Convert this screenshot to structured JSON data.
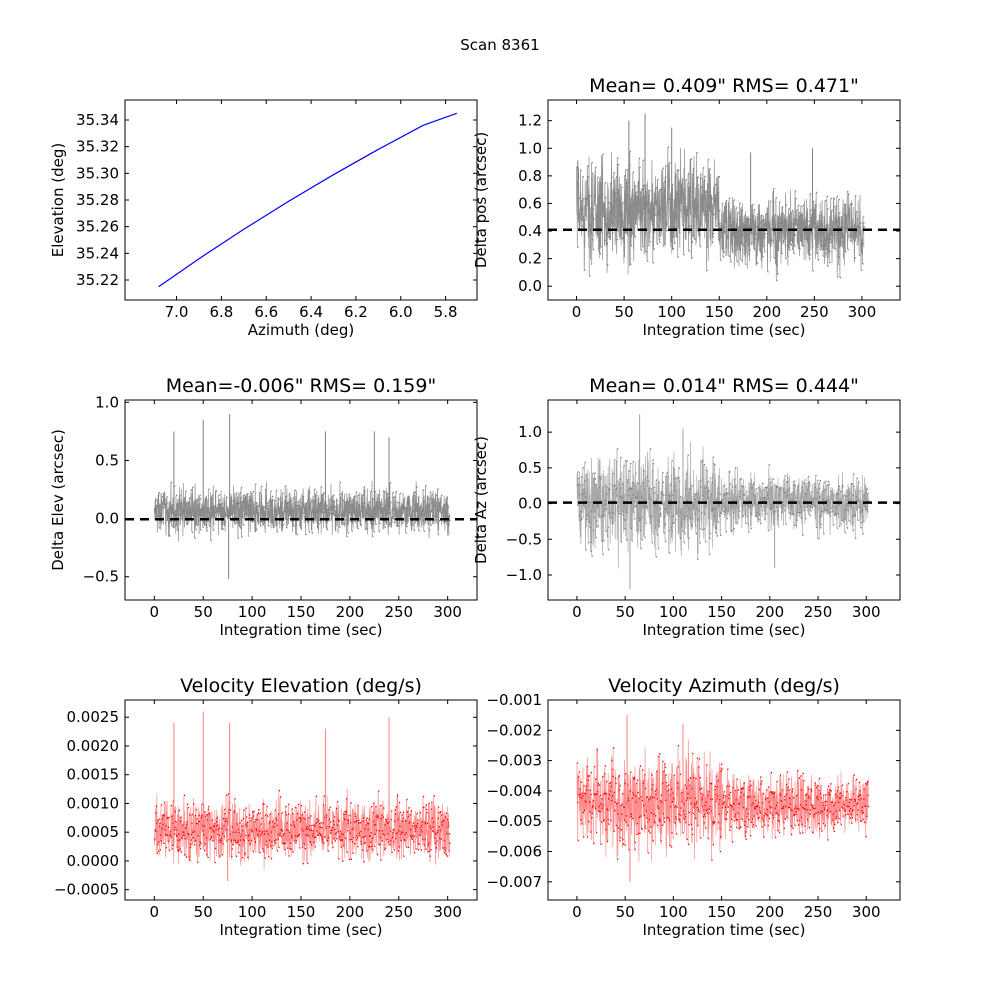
{
  "figure_title": "Scan 8361",
  "chart_data": [
    {
      "id": "elev-vs-az",
      "type": "line",
      "title": "",
      "xlabel": "Azimuth (deg)",
      "ylabel": "Elevation (deg)",
      "xlim": [
        7.23,
        5.66
      ],
      "ylim": [
        35.205,
        35.355
      ],
      "x_reversed": true,
      "xticks": [
        7.0,
        6.8,
        6.6,
        6.4,
        6.2,
        6.0,
        5.8
      ],
      "xtick_labels": [
        "7.0",
        "6.8",
        "6.6",
        "6.4",
        "6.2",
        "6.0",
        "5.8"
      ],
      "yticks": [
        35.22,
        35.24,
        35.26,
        35.28,
        35.3,
        35.32,
        35.34
      ],
      "ytick_labels": [
        "35.22",
        "35.24",
        "35.26",
        "35.28",
        "35.30",
        "35.32",
        "35.34"
      ],
      "series": [
        {
          "color": "#0000ff",
          "x": [
            7.08,
            6.9,
            6.7,
            6.5,
            6.3,
            6.1,
            5.9,
            5.75
          ],
          "y": [
            35.215,
            35.236,
            35.258,
            35.279,
            35.299,
            35.318,
            35.336,
            35.345
          ]
        }
      ]
    },
    {
      "id": "delta-pos",
      "type": "line",
      "title": "Mean= 0.409\"  RMS= 0.471\"",
      "xlabel": "Integration time (sec)",
      "ylabel": "Delta pos (arcsec)",
      "xlim": [
        -30,
        340
      ],
      "ylim": [
        -0.1,
        1.35
      ],
      "xticks": [
        0,
        50,
        100,
        150,
        200,
        250,
        300
      ],
      "xtick_labels": [
        "0",
        "50",
        "100",
        "150",
        "200",
        "250",
        "300"
      ],
      "yticks": [
        0.0,
        0.2,
        0.4,
        0.6,
        0.8,
        1.0,
        1.2
      ],
      "ytick_labels": [
        "0.0",
        "0.2",
        "0.4",
        "0.6",
        "0.8",
        "1.0",
        "1.2"
      ],
      "mean_line": 0.409,
      "series": [
        {
          "color": "#808080",
          "x_range": [
            0,
            302
          ],
          "segments": [
            {
              "t_end": 150,
              "low": 0.02,
              "high": 1.08
            },
            {
              "t_end": 302,
              "low": 0.02,
              "high": 0.78
            }
          ],
          "spikes": [
            {
              "t": 55,
              "value": 1.2
            },
            {
              "t": 72,
              "value": 1.25
            },
            {
              "t": 100,
              "value": 1.15
            },
            {
              "t": 183,
              "value": 0.97
            },
            {
              "t": 248,
              "value": 1.0
            }
          ]
        }
      ]
    },
    {
      "id": "delta-elev",
      "type": "line",
      "title": "Mean=-0.006\"  RMS= 0.159\"",
      "xlabel": "Integration time (sec)",
      "ylabel": "Delta Elev (arcsec)",
      "xlim": [
        -30,
        330
      ],
      "ylim": [
        -0.7,
        1.02
      ],
      "xticks": [
        0,
        50,
        100,
        150,
        200,
        250,
        300
      ],
      "xtick_labels": [
        "0",
        "50",
        "100",
        "150",
        "200",
        "250",
        "300"
      ],
      "yticks": [
        -0.5,
        0.0,
        0.5,
        1.0
      ],
      "ytick_labels": [
        "−0.5",
        "0.0",
        "0.5",
        "1.0"
      ],
      "mean_line": -0.006,
      "series": [
        {
          "color": "#808080",
          "x_range": [
            0,
            302
          ],
          "segments": [
            {
              "t_end": 302,
              "low": -0.22,
              "high": 0.35
            }
          ],
          "spikes": [
            {
              "t": 20,
              "value": 0.75
            },
            {
              "t": 50,
              "value": 0.85
            },
            {
              "t": 77,
              "value": 0.9
            },
            {
              "t": 76,
              "value": -0.52
            },
            {
              "t": 175,
              "value": 0.75
            },
            {
              "t": 225,
              "value": 0.75
            },
            {
              "t": 240,
              "value": 0.7
            }
          ]
        }
      ]
    },
    {
      "id": "delta-az",
      "type": "line",
      "title": "Mean= 0.014\"  RMS= 0.444\"",
      "xlabel": "Integration time (sec)",
      "ylabel": "Delta Az (arcsec)",
      "xlim": [
        -30,
        335
      ],
      "ylim": [
        -1.35,
        1.45
      ],
      "xticks": [
        0,
        50,
        100,
        150,
        200,
        250,
        300
      ],
      "xtick_labels": [
        "0",
        "50",
        "100",
        "150",
        "200",
        "250",
        "300"
      ],
      "yticks": [
        -1.0,
        -0.5,
        0.0,
        0.5,
        1.0
      ],
      "ytick_labels": [
        "−1.0",
        "−0.5",
        "0.0",
        "0.5",
        "1.0"
      ],
      "mean_line": 0.014,
      "series": [
        {
          "color": "#a0a0a0",
          "marker_color": "#808080",
          "x_range": [
            0,
            302
          ],
          "segments": [
            {
              "t_end": 150,
              "low": -0.95,
              "high": 0.95
            },
            {
              "t_end": 302,
              "low": -0.55,
              "high": 0.6
            }
          ],
          "spikes": [
            {
              "t": 65,
              "value": 1.25
            },
            {
              "t": 55,
              "value": -1.2
            },
            {
              "t": 110,
              "value": 1.05
            },
            {
              "t": 205,
              "value": -0.9
            }
          ]
        }
      ]
    },
    {
      "id": "velocity-elevation",
      "type": "line",
      "title": "Velocity Elevation (deg/s)",
      "xlabel": "Integration time (sec)",
      "ylabel": "",
      "xlim": [
        -30,
        330
      ],
      "ylim": [
        -0.00068,
        0.0028
      ],
      "xticks": [
        0,
        50,
        100,
        150,
        200,
        250,
        300
      ],
      "xtick_labels": [
        "0",
        "50",
        "100",
        "150",
        "200",
        "250",
        "300"
      ],
      "yticks": [
        -0.0005,
        0.0,
        0.0005,
        0.001,
        0.0015,
        0.002,
        0.0025
      ],
      "ytick_labels": [
        "−0.0005",
        "0.0000",
        "0.0005",
        "0.0010",
        "0.0015",
        "0.0020",
        "0.0025"
      ],
      "series": [
        {
          "color": "#ff0000",
          "line_color": "#ff7f7f",
          "x_range": [
            0,
            302
          ],
          "segments": [
            {
              "t_end": 302,
              "low": -0.0002,
              "high": 0.0013
            }
          ],
          "spikes": [
            {
              "t": 20,
              "value": 0.0024
            },
            {
              "t": 50,
              "value": 0.0026
            },
            {
              "t": 77,
              "value": 0.0024
            },
            {
              "t": 175,
              "value": 0.0023
            },
            {
              "t": 240,
              "value": 0.0025
            },
            {
              "t": 75,
              "value": -0.00035
            }
          ]
        }
      ]
    },
    {
      "id": "velocity-azimuth",
      "type": "line",
      "title": "Velocity Azimuth (deg/s)",
      "xlabel": "Integration time (sec)",
      "ylabel": "",
      "xlim": [
        -30,
        335
      ],
      "ylim": [
        -0.0076,
        -0.001
      ],
      "xticks": [
        0,
        50,
        100,
        150,
        200,
        250,
        300
      ],
      "xtick_labels": [
        "0",
        "50",
        "100",
        "150",
        "200",
        "250",
        "300"
      ],
      "yticks": [
        -0.007,
        -0.006,
        -0.005,
        -0.004,
        -0.003,
        -0.002,
        -0.001
      ],
      "ytick_labels": [
        "−0.007",
        "−0.006",
        "−0.005",
        "−0.004",
        "−0.003",
        "−0.002",
        "−0.001"
      ],
      "series": [
        {
          "color": "#ff0000",
          "line_color": "#ff7f7f",
          "x_range": [
            0,
            302
          ],
          "segments": [
            {
              "t_end": 150,
              "low": -0.0066,
              "high": -0.0022
            },
            {
              "t_end": 302,
              "low": -0.0059,
              "high": -0.0031
            }
          ],
          "spikes": [
            {
              "t": 52,
              "value": -0.0015
            },
            {
              "t": 55,
              "value": -0.007
            },
            {
              "t": 110,
              "value": -0.0018
            }
          ]
        }
      ]
    }
  ]
}
